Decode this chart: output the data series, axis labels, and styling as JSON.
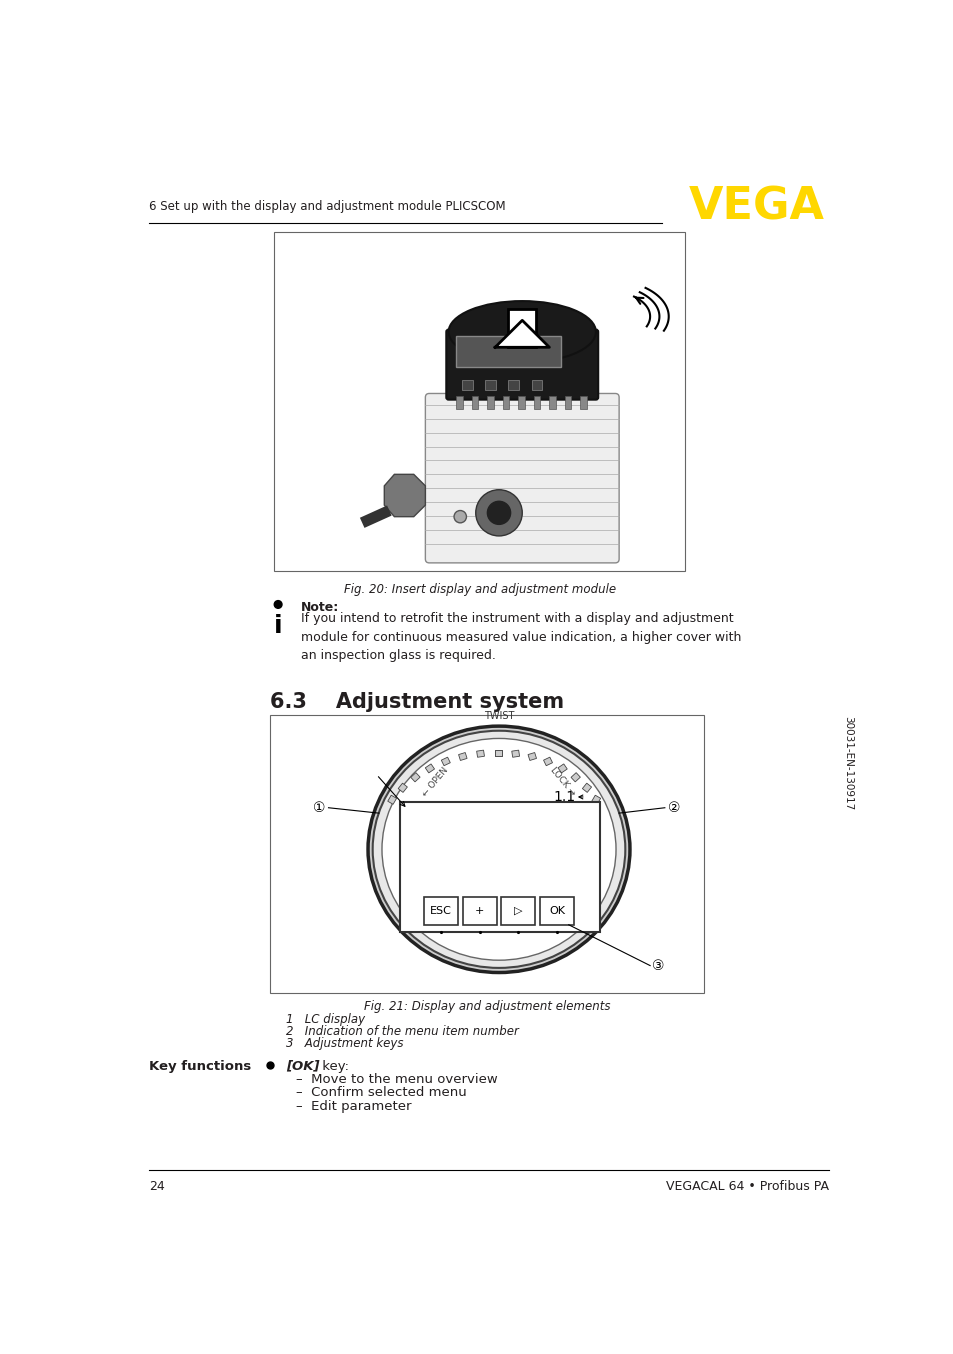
{
  "page_number": "24",
  "footer_right": "VEGACAL 64 • Profibus PA",
  "header_left": "6 Set up with the display and adjustment module PLICSCOM",
  "vega_color": "#FFD700",
  "section_number": "6.3",
  "section_title": "Adjustment system",
  "fig20_caption": "Fig. 20: Insert display and adjustment module",
  "fig21_caption": "Fig. 21: Display and adjustment elements",
  "note_bold": "Note:",
  "note_text": "If you intend to retrofit the instrument with a display and adjustment\nmodule for continuous measured value indication, a higher cover with\nan inspection glass is required.",
  "legend_items": [
    "1   LC display",
    "2   Indication of the menu item number",
    "3   Adjustment keys"
  ],
  "key_functions_title": "Key functions",
  "key_functions_bullets": [
    "–  Move to the menu overview",
    "–  Confirm selected menu",
    "–  Edit parameter"
  ],
  "sidebar_text": "30031-EN-130917",
  "bg_color": "#FFFFFF",
  "text_color": "#231F20"
}
